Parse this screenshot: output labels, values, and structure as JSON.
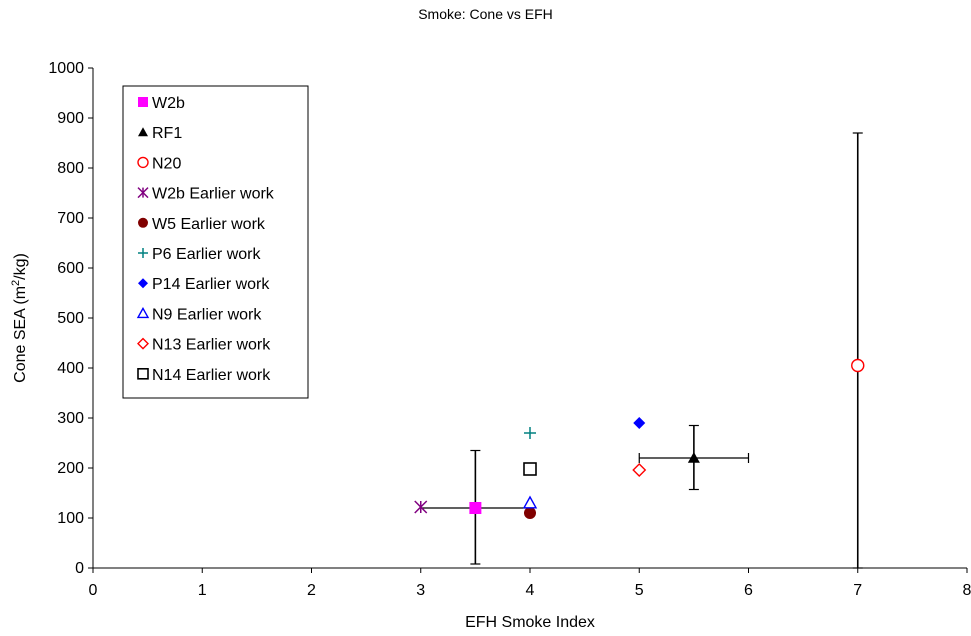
{
  "chart_data": {
    "type": "scatter",
    "title": "Smoke: Cone vs EFH",
    "xlabel": "EFH Smoke Index",
    "ylabel_main": "Cone SEA (m",
    "ylabel_sup": "2",
    "ylabel_tail": "/kg)",
    "xlim": [
      0,
      8
    ],
    "ylim": [
      0,
      1000
    ],
    "x_ticks": [
      "0",
      "1",
      "2",
      "3",
      "4",
      "5",
      "6",
      "7",
      "8"
    ],
    "y_ticks": [
      "0",
      "100",
      "200",
      "300",
      "400",
      "500",
      "600",
      "700",
      "800",
      "900",
      "1000"
    ],
    "grid": false,
    "legend_position": "top-left",
    "series": [
      {
        "name": "W2b",
        "marker": "square-filled",
        "color": "#ff00ff",
        "x": [
          3.5
        ],
        "y": [
          120
        ],
        "x_err": [
          [
            3.0,
            4.0
          ]
        ],
        "y_err": [
          [
            8,
            235
          ]
        ]
      },
      {
        "name": "RF1",
        "marker": "triangle-filled",
        "color": "#000000",
        "x": [
          5.5
        ],
        "y": [
          220
        ],
        "x_err": [
          [
            5.0,
            6.0
          ]
        ],
        "y_err": [
          [
            157,
            285
          ]
        ]
      },
      {
        "name": "N20",
        "marker": "circle-open",
        "color": "#ff0000",
        "x": [
          7
        ],
        "y": [
          405
        ],
        "x_err": [],
        "y_err": [
          [
            0,
            870
          ]
        ]
      },
      {
        "name": "W2b Earlier work",
        "marker": "asterisk",
        "color": "#800080",
        "x": [
          3
        ],
        "y": [
          122
        ]
      },
      {
        "name": "W5 Earlier work",
        "marker": "circle-filled",
        "color": "#800000",
        "x": [
          4
        ],
        "y": [
          110
        ]
      },
      {
        "name": "P6 Earlier work",
        "marker": "plus",
        "color": "#008080",
        "x": [
          4
        ],
        "y": [
          270
        ]
      },
      {
        "name": "P14 Earlier work",
        "marker": "diamond-filled",
        "color": "#0000ff",
        "x": [
          5
        ],
        "y": [
          290
        ]
      },
      {
        "name": "N9 Earlier work",
        "marker": "triangle-open",
        "color": "#0000ff",
        "x": [
          4
        ],
        "y": [
          130
        ]
      },
      {
        "name": "N13 Earlier work",
        "marker": "diamond-open",
        "color": "#ff0000",
        "x": [
          5
        ],
        "y": [
          196
        ]
      },
      {
        "name": "N14 Earlier work",
        "marker": "square-open",
        "color": "#000000",
        "x": [
          4
        ],
        "y": [
          198
        ]
      }
    ]
  }
}
